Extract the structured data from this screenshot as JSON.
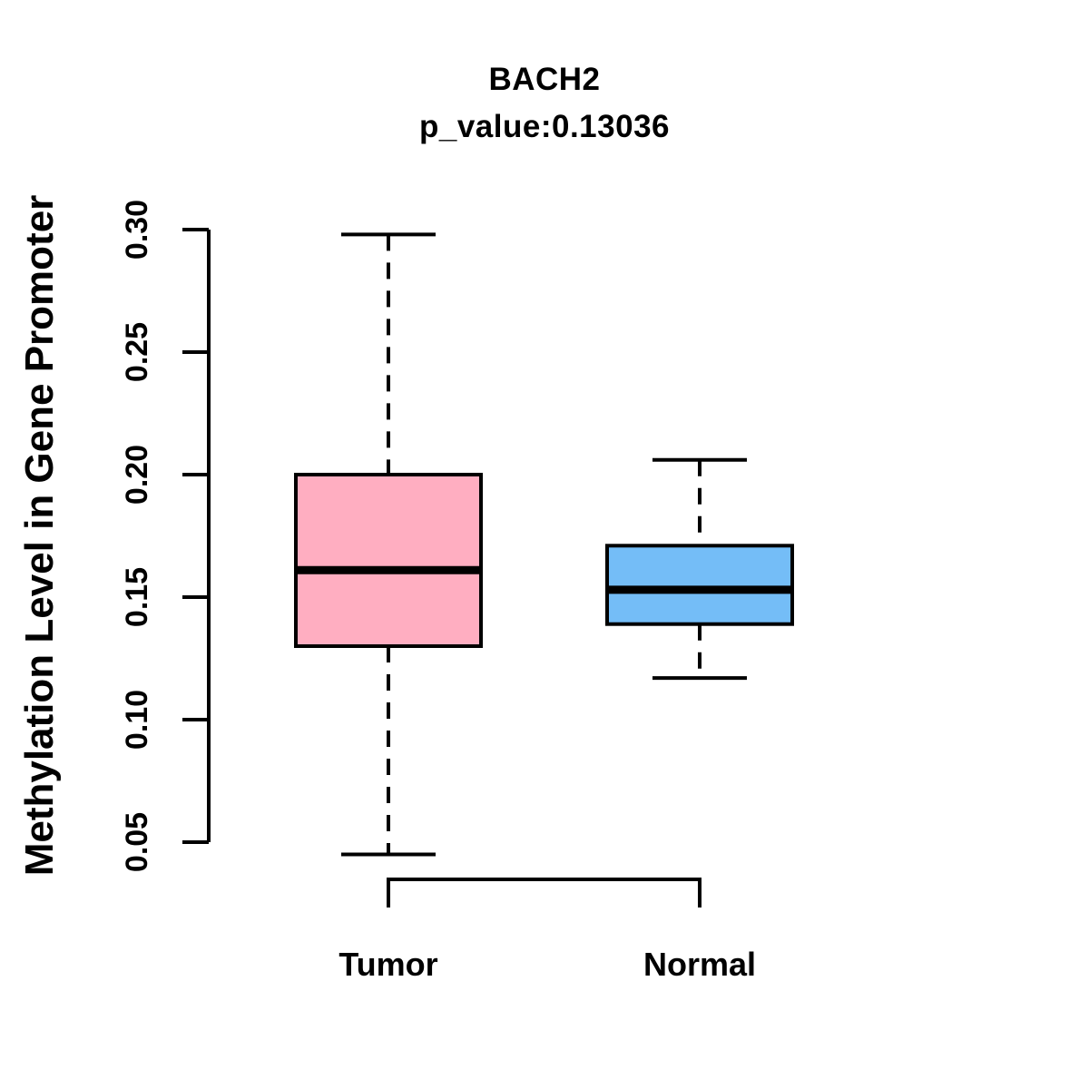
{
  "chart_data": {
    "type": "boxplot",
    "title": "BACH2",
    "subtitle": "p_value:0.13036",
    "ylabel": "Methylation Level in Gene Promoter",
    "xlabel": "",
    "ylim": [
      0.05,
      0.3
    ],
    "yticks": [
      0.05,
      0.1,
      0.15,
      0.2,
      0.25,
      0.3
    ],
    "ytick_labels": [
      "0.05",
      "0.10",
      "0.15",
      "0.20",
      "0.25",
      "0.30"
    ],
    "grid": false,
    "legend": "none",
    "groups": [
      {
        "label": "Tumor",
        "color": "#FFAEC1",
        "stats": {
          "whisker_low": 0.045,
          "q1": 0.13,
          "median": 0.161,
          "q3": 0.2,
          "whisker_high": 0.298
        }
      },
      {
        "label": "Normal",
        "color": "#74BDF7",
        "stats": {
          "whisker_low": 0.117,
          "q1": 0.139,
          "median": 0.153,
          "q3": 0.171,
          "whisker_high": 0.206
        }
      }
    ],
    "colors": {
      "line": "#000000",
      "background": "#FFFFFF"
    }
  }
}
